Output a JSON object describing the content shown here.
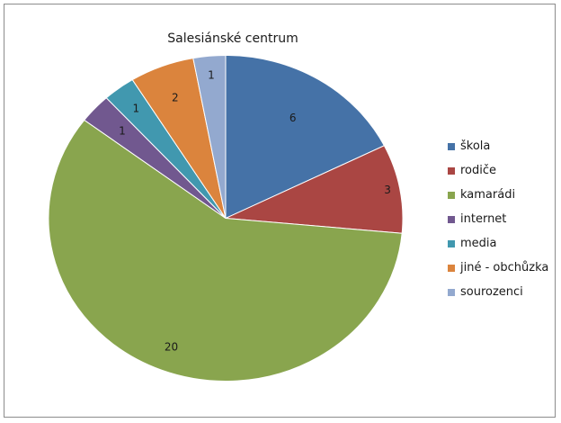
{
  "chart_data": {
    "type": "pie",
    "title": "Salesiánské centrum",
    "legend_position": "right",
    "slices": [
      {
        "label": "škola",
        "value": 6,
        "color": "#4572A7"
      },
      {
        "label": "rodiče",
        "value": 3,
        "color": "#AA4643"
      },
      {
        "label": "kamarádi",
        "value": 20,
        "color": "#89A54E"
      },
      {
        "label": "internet",
        "value": 1,
        "color": "#71588F"
      },
      {
        "label": "media",
        "value": 1,
        "color": "#4198AF"
      },
      {
        "label": "jiné - obchůzka",
        "value": 2,
        "color": "#DB843D"
      },
      {
        "label": "sourozenci",
        "value": 1,
        "color": "#93A9CF"
      }
    ]
  }
}
